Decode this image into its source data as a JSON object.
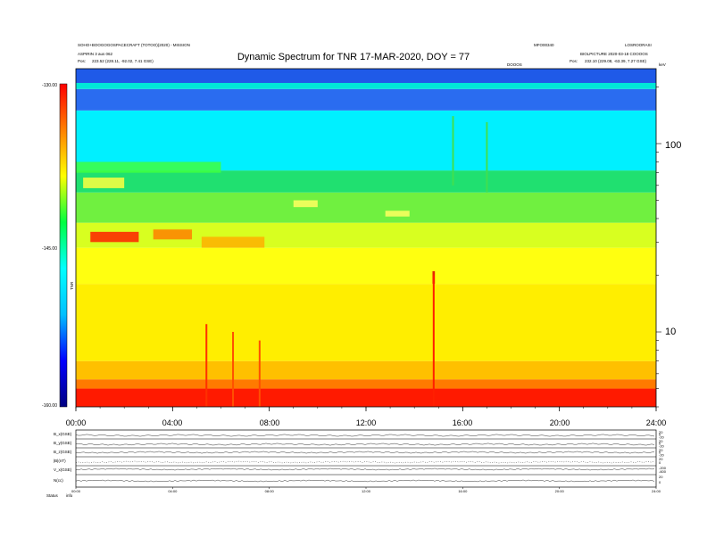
{
  "header": {
    "left_line1": "SOHO+BOOGOGOSPACECRAFT (TOTOO)(2020) - MISSION",
    "left_line2": "ASPIRIN 3 aus 062",
    "left_line3_label": "Pos:",
    "left_line3_value": "223.52 (228.11, -92.02, 7.41 GSE)",
    "right_top_a": "MFO00340",
    "right_top_b": "LOSROORASI",
    "right_line2": "BIOLPICTURE 2020-03-18 COOOOS",
    "right_line3_label": "Pos:",
    "right_line3_value": "232.10 (229.08, -63.39, 7.27 GSE)",
    "center_small": "DOOOS",
    "corner_small": "keV"
  },
  "chart_data": {
    "type": "heatmap",
    "title": "Dynamic Spectrum for TNR 17-MAR-2020, DOY = 77",
    "colorbar": {
      "ticks": [
        "-130.00",
        "-145.00",
        "-160.00"
      ],
      "range": [
        -160,
        -130
      ],
      "label": "TNR",
      "colors": [
        "#000080",
        "#0000ff",
        "#00c0ff",
        "#00ffff",
        "#00ff40",
        "#ffff00",
        "#ff8000",
        "#ff0000"
      ]
    },
    "x": {
      "range": [
        0,
        24
      ],
      "ticks": [
        0,
        4,
        8,
        12,
        16,
        20,
        24
      ],
      "tick_labels": [
        "00:00",
        "04:00",
        "08:00",
        "12:00",
        "16:00",
        "20:00",
        "24:00"
      ]
    },
    "y": {
      "scale": "log",
      "range": [
        4,
        250
      ],
      "ticks": [
        10,
        100
      ],
      "tick_labels": [
        "10",
        "100"
      ]
    },
    "bands": [
      {
        "from": 4.0,
        "to": 5.0,
        "color": "#ff1a00"
      },
      {
        "from": 5.0,
        "to": 5.6,
        "color": "#ff7a00"
      },
      {
        "from": 5.6,
        "to": 7.0,
        "color": "#ffc000"
      },
      {
        "from": 7.0,
        "to": 18.0,
        "color": "#ffee00"
      },
      {
        "from": 18.0,
        "to": 28.0,
        "color": "#ffff10"
      },
      {
        "from": 28.0,
        "to": 38.0,
        "color": "#d8ff20"
      },
      {
        "from": 38.0,
        "to": 55.0,
        "color": "#70f040"
      },
      {
        "from": 55.0,
        "to": 72.0,
        "color": "#20e070"
      },
      {
        "from": 72.0,
        "to": 150.0,
        "color": "#00f0ff"
      },
      {
        "from": 150.0,
        "to": 195.0,
        "color": "#2a6cf0"
      },
      {
        "from": 195.0,
        "to": 210.0,
        "color": "#00e8d8"
      },
      {
        "from": 210.0,
        "to": 250.0,
        "color": "#1f5ae8"
      }
    ],
    "features": [
      {
        "x0": 0.6,
        "x1": 2.6,
        "y0": 30,
        "y1": 34,
        "color": "#ff2000"
      },
      {
        "x0": 3.2,
        "x1": 4.8,
        "y0": 31,
        "y1": 35,
        "color": "#ff8000"
      },
      {
        "x0": 5.2,
        "x1": 7.8,
        "y0": 28,
        "y1": 32,
        "color": "#ffb000"
      },
      {
        "x0": 14.75,
        "x1": 14.85,
        "y0": 18,
        "y1": 21,
        "color": "#e00000"
      },
      {
        "x0": 0.3,
        "x1": 2.0,
        "y0": 58,
        "y1": 66,
        "color": "#ffff40"
      },
      {
        "x0": 9.0,
        "x1": 10.0,
        "y0": 46,
        "y1": 50,
        "color": "#ffff60"
      },
      {
        "x0": 12.8,
        "x1": 13.8,
        "y0": 41,
        "y1": 44,
        "color": "#ffff60"
      },
      {
        "x0": 0.0,
        "x1": 6.0,
        "y0": 70,
        "y1": 80,
        "color": "#40ff40"
      }
    ],
    "spikes": [
      {
        "x": 5.4,
        "y0": 4,
        "y1": 11,
        "color": "#ff3000"
      },
      {
        "x": 6.5,
        "y0": 4,
        "y1": 10,
        "color": "#ff5000"
      },
      {
        "x": 7.6,
        "y0": 4,
        "y1": 9,
        "color": "#ff5000"
      },
      {
        "x": 14.8,
        "y0": 4,
        "y1": 20,
        "color": "#ff2000"
      },
      {
        "x": 15.6,
        "y0": 60,
        "y1": 140,
        "color": "#40e050"
      },
      {
        "x": 17.0,
        "y0": 55,
        "y1": 130,
        "color": "#40e050"
      }
    ]
  },
  "panels": {
    "labels": [
      "B_x(GSE)",
      "B_y(GSE)",
      "B_z(GSE)",
      "|B|(nT)",
      "V_x(GSE)",
      "N(cc)"
    ],
    "right_ticks": [
      [
        "20",
        "0",
        "-20"
      ],
      [
        "20",
        "0",
        "-20"
      ],
      [
        "20",
        "0",
        "-20"
      ],
      [
        "20",
        "0"
      ],
      [
        "-200",
        "-600"
      ],
      [
        "20",
        "0"
      ]
    ],
    "bottom_ticks": [
      "00:00",
      "04:00",
      "08:00",
      "12:00",
      "16:00",
      "20:00",
      "24:00"
    ],
    "footer_left": "Status",
    "footer_right": "info"
  }
}
